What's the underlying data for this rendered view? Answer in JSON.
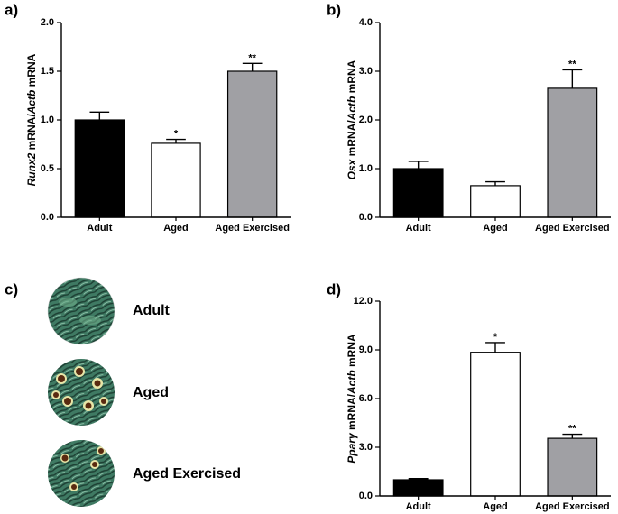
{
  "chart_data": [
    {
      "type": "bar",
      "panel_label": "a)",
      "ylabel": [
        {
          "text": "Runx2",
          "italic": true
        },
        {
          "text": " mRNA/",
          "italic": false
        },
        {
          "text": "Actb",
          "italic": true
        },
        {
          "text": " mRNA",
          "italic": false
        }
      ],
      "categories": [
        "Adult",
        "Aged",
        "Aged Exercised"
      ],
      "values": [
        1.0,
        0.76,
        1.5
      ],
      "errors": [
        0.08,
        0.04,
        0.08
      ],
      "annotations": [
        null,
        "*",
        "**"
      ],
      "colors": [
        "#000000",
        "#ffffff",
        "#a0a0a4"
      ],
      "ylim": [
        0,
        2
      ],
      "yticks": [
        {
          "value": 0,
          "label": "0.0"
        },
        0.5,
        {
          "value": 1,
          "label": "1.0"
        },
        1.5,
        {
          "value": 2,
          "label": "2.0"
        }
      ]
    },
    {
      "type": "bar",
      "panel_label": "b)",
      "ylabel": [
        {
          "text": "Osx",
          "italic": true
        },
        {
          "text": " mRNA/",
          "italic": false
        },
        {
          "text": "Actb",
          "italic": true
        },
        {
          "text": " mRNA",
          "italic": false
        }
      ],
      "categories": [
        "Adult",
        "Aged",
        "Aged Exercised"
      ],
      "values": [
        1.0,
        0.65,
        2.65
      ],
      "errors": [
        0.15,
        0.08,
        0.38
      ],
      "annotations": [
        null,
        null,
        "**"
      ],
      "colors": [
        "#000000",
        "#ffffff",
        "#a0a0a4"
      ],
      "ylim": [
        0,
        4
      ],
      "yticks": [
        {
          "value": 0,
          "label": "0.0"
        },
        {
          "value": 1,
          "label": "1.0"
        },
        {
          "value": 2,
          "label": "2.0"
        },
        {
          "value": 3,
          "label": "3.0"
        },
        {
          "value": 4,
          "label": "4.0"
        }
      ]
    },
    {
      "type": "bar",
      "panel_label": "d)",
      "ylabel": [
        {
          "text": "Pparγ",
          "italic": true
        },
        {
          "text": " mRNA/",
          "italic": false
        },
        {
          "text": "Actb",
          "italic": true
        },
        {
          "text": " mRNA",
          "italic": false
        }
      ],
      "categories": [
        "Adult",
        "Aged",
        "Aged Exercised"
      ],
      "values": [
        1.0,
        8.85,
        3.55
      ],
      "errors": [
        0.07,
        0.6,
        0.25
      ],
      "annotations": [
        null,
        "*",
        "**"
      ],
      "colors": [
        "#000000",
        "#ffffff",
        "#a0a0a4"
      ],
      "ylim": [
        0,
        12
      ],
      "yticks": [
        {
          "value": 0,
          "label": "0.0"
        },
        {
          "value": 3,
          "label": "3.0"
        },
        {
          "value": 6,
          "label": "6.0"
        },
        {
          "value": 9,
          "label": "9.0"
        },
        {
          "value": 12,
          "label": "12.0"
        }
      ]
    }
  ],
  "panel_c": {
    "label": "c)",
    "images": [
      {
        "label": "Adult"
      },
      {
        "label": "Aged"
      },
      {
        "label": "Aged Exercised"
      }
    ]
  }
}
